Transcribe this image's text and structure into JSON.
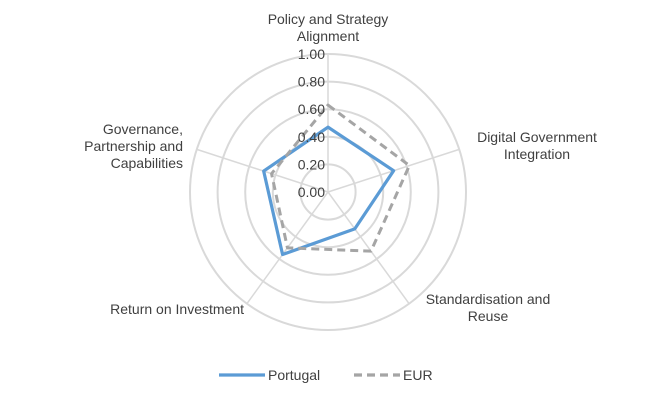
{
  "chart_data": {
    "type": "radar",
    "axes": [
      {
        "label_lines": [
          "Policy and Strategy",
          "Alignment"
        ]
      },
      {
        "label_lines": [
          "Digital Government",
          "Integration"
        ]
      },
      {
        "label_lines": [
          "Standardisation and",
          "Reuse"
        ]
      },
      {
        "label_lines": [
          "Return on Investment"
        ]
      },
      {
        "label_lines": [
          "Governance,",
          "Partnership and",
          "Capabilities"
        ]
      }
    ],
    "ticks": [
      "0.00",
      "0.20",
      "0.40",
      "0.60",
      "0.80",
      "1.00"
    ],
    "rlim": [
      0,
      1
    ],
    "grid": true,
    "legend_position": "bottom",
    "series": [
      {
        "name": "Portugal",
        "values": [
          0.47,
          0.5,
          0.33,
          0.56,
          0.49
        ],
        "color": "#5B9BD5",
        "style": "solid"
      },
      {
        "name": "EUR",
        "values": [
          0.63,
          0.62,
          0.53,
          0.5,
          0.43
        ],
        "color": "#A5A5A5",
        "style": "dashed"
      }
    ]
  }
}
